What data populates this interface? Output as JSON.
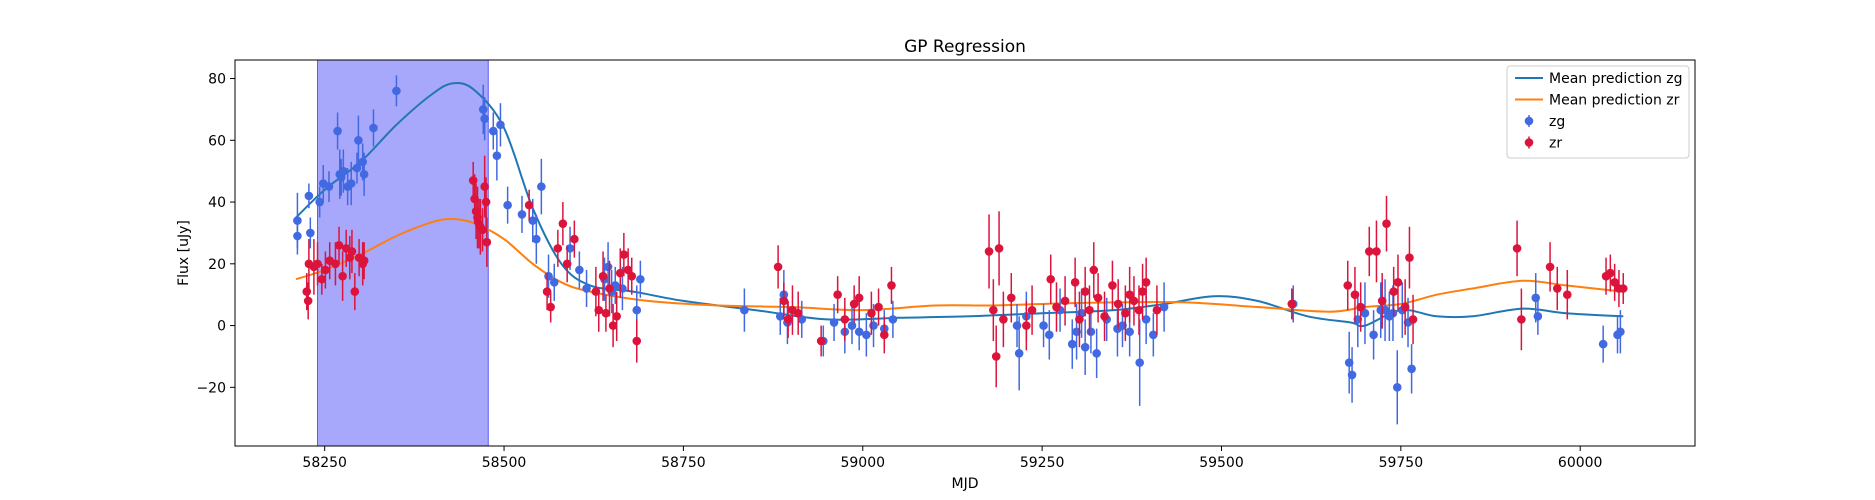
{
  "chart_data": {
    "type": "scatter",
    "title": "GP Regression",
    "xlabel": "MJD",
    "ylabel": "Flux [uJy]",
    "xlim": [
      58125,
      60160
    ],
    "ylim": [
      -39,
      86
    ],
    "xticks": [
      58250,
      58500,
      58750,
      59000,
      59250,
      59500,
      59750,
      60000
    ],
    "yticks": [
      -20,
      0,
      20,
      40,
      60,
      80
    ],
    "grid": false,
    "legend_position": "top-right",
    "highlight_span": {
      "x0": 58240,
      "x1": 58478,
      "color": "#a7a7fb"
    },
    "series": [
      {
        "name": "Mean prediction zg",
        "kind": "line",
        "color": "#1f77b4",
        "x": [
          58210,
          58250,
          58300,
          58350,
          58400,
          58430,
          58460,
          58500,
          58540,
          58580,
          58620,
          58680,
          58750,
          58850,
          58950,
          59050,
          59150,
          59250,
          59350,
          59420,
          59490,
          59550,
          59620,
          59680,
          59700,
          59750,
          59800,
          59850,
          59920,
          59980,
          60060
        ],
        "y": [
          35,
          44,
          53,
          65,
          75,
          78.5,
          76,
          64,
          38,
          20,
          13,
          11,
          8,
          5,
          2,
          2.5,
          3,
          4,
          5,
          7,
          9.5,
          8,
          3,
          1,
          0,
          5,
          3,
          3,
          5.5,
          4,
          3
        ]
      },
      {
        "name": "Mean prediction zr",
        "kind": "line",
        "color": "#ff7f0e",
        "x": [
          58210,
          58250,
          58300,
          58350,
          58400,
          58430,
          58460,
          58500,
          58540,
          58580,
          58620,
          58700,
          58800,
          58900,
          59000,
          59100,
          59180,
          59250,
          59350,
          59450,
          59550,
          59650,
          59700,
          59750,
          59800,
          59850,
          59920,
          59980,
          60060
        ],
        "y": [
          15,
          18,
          23,
          29,
          33.5,
          34.5,
          33,
          28,
          20,
          14,
          11,
          8,
          6.5,
          6,
          5,
          6.5,
          6.5,
          7,
          7.5,
          7.5,
          6,
          4.5,
          6,
          7,
          10,
          12,
          14.5,
          13,
          11
        ]
      },
      {
        "name": "zg",
        "kind": "errorbar",
        "color": "#4169e1",
        "x": [
          58212,
          58212,
          58228,
          58230,
          58243,
          58248,
          58256,
          58268,
          58271,
          58273,
          58276,
          58282,
          58287,
          58295,
          58297,
          58303,
          58305,
          58318,
          58350,
          58471,
          58473,
          58485,
          58490,
          58495,
          58505,
          58525,
          58540,
          58545,
          58552,
          58562,
          58570,
          58592,
          58605,
          58615,
          58640,
          58645,
          58650,
          58655,
          58665,
          58685,
          58690,
          58835,
          58885,
          58890,
          58895,
          58915,
          58945,
          58960,
          58975,
          58985,
          58995,
          59005,
          59015,
          59030,
          59042,
          59215,
          59218,
          59228,
          59252,
          59260,
          59275,
          59292,
          59298,
          59305,
          59310,
          59318,
          59326,
          59340,
          59355,
          59362,
          59372,
          59386,
          59395,
          59405,
          59420,
          59600,
          59678,
          59682,
          59690,
          59700,
          59712,
          59722,
          59728,
          59734,
          59739,
          59745,
          59752,
          59760,
          59765,
          59938,
          59941,
          60032,
          60052,
          60056
        ],
        "y": [
          34,
          29,
          42,
          30,
          40,
          46,
          45,
          63,
          49,
          48,
          50,
          45,
          46,
          51,
          60,
          53,
          49,
          64,
          76,
          70,
          67,
          63,
          55,
          65,
          39,
          36,
          34,
          28,
          45,
          16,
          14,
          25,
          18,
          12,
          15,
          19,
          11,
          13,
          12,
          5,
          15,
          5,
          3,
          10,
          1,
          2,
          -5,
          1,
          -2,
          0,
          -2,
          -3,
          0,
          -1,
          2,
          0,
          -9,
          3,
          0,
          -3,
          5,
          -6,
          -2,
          4,
          -7,
          -2,
          -9,
          2,
          -1,
          0,
          -2,
          -12,
          2,
          -3,
          6,
          7,
          -12,
          -16,
          2,
          4,
          -3,
          5,
          5,
          3,
          4,
          -20,
          5,
          1,
          -14,
          9,
          3,
          -6,
          -3,
          -2
        ],
        "err": [
          9,
          6,
          4,
          5,
          5,
          6,
          5,
          6,
          8,
          6,
          7,
          6,
          7,
          5,
          8,
          6,
          7,
          6,
          5,
          8,
          7,
          6,
          8,
          7,
          6,
          6,
          7,
          8,
          9,
          7,
          6,
          7,
          6,
          6,
          7,
          8,
          7,
          6,
          7,
          8,
          6,
          7,
          6,
          8,
          7,
          6,
          5,
          6,
          7,
          6,
          6,
          7,
          7,
          6,
          6,
          7,
          12,
          8,
          7,
          8,
          7,
          8,
          9,
          8,
          9,
          7,
          8,
          7,
          9,
          7,
          8,
          14,
          8,
          7,
          8,
          6,
          10,
          9,
          9,
          10,
          8,
          9,
          10,
          8,
          9,
          12,
          9,
          8,
          8,
          8,
          6,
          6,
          6,
          7
        ]
      },
      {
        "name": "zr",
        "kind": "errorbar",
        "color": "#dc143c",
        "x": [
          58225,
          58227,
          58228,
          58235,
          58240,
          58246,
          58251,
          58257,
          58265,
          58270,
          58275,
          58280,
          58285,
          58288,
          58292,
          58298,
          58303,
          58305,
          58457,
          58459,
          58461,
          58463,
          58465,
          58467,
          58470,
          58473,
          58475,
          58476,
          58535,
          58560,
          58565,
          58575,
          58582,
          58588,
          58598,
          58628,
          58632,
          58638,
          58642,
          58647,
          58652,
          58657,
          58662,
          58667,
          58673,
          58678,
          58685,
          58882,
          58890,
          58896,
          58902,
          58910,
          58942,
          58965,
          58975,
          58988,
          58995,
          59012,
          59022,
          59030,
          59040,
          59176,
          59182,
          59186,
          59190,
          59196,
          59207,
          59228,
          59236,
          59262,
          59270,
          59282,
          59296,
          59302,
          59310,
          59316,
          59322,
          59328,
          59337,
          59348,
          59356,
          59366,
          59372,
          59378,
          59385,
          59390,
          59395,
          59410,
          59598,
          59676,
          59686,
          59694,
          59706,
          59716,
          59724,
          59730,
          59740,
          59746,
          59756,
          59762,
          59767,
          59912,
          59918,
          59958,
          59968,
          59982,
          60036,
          60042,
          60048,
          60054,
          60060
        ],
        "y": [
          11,
          8,
          20,
          19,
          20,
          15,
          18,
          21,
          20,
          26,
          16,
          25,
          22,
          24,
          11,
          22,
          20,
          21,
          47,
          41,
          37,
          35,
          33,
          32,
          31,
          45,
          40,
          27,
          39,
          11,
          6,
          25,
          33,
          20,
          28,
          11,
          5,
          16,
          4,
          12,
          0,
          3,
          17,
          23,
          18,
          16,
          -5,
          19,
          8,
          2,
          5,
          4,
          -5,
          10,
          2,
          7,
          9,
          4,
          6,
          -3,
          13,
          24,
          5,
          -10,
          25,
          2,
          9,
          0,
          5,
          15,
          6,
          8,
          14,
          2,
          11,
          5,
          18,
          9,
          3,
          13,
          7,
          4,
          10,
          8,
          5,
          11,
          14,
          5,
          7,
          13,
          10,
          6,
          24,
          24,
          8,
          33,
          11,
          14,
          6,
          22,
          2,
          25,
          2,
          19,
          12,
          10,
          16,
          17,
          14,
          12,
          12
        ],
        "err": [
          6,
          6,
          8,
          9,
          7,
          5,
          6,
          6,
          7,
          6,
          8,
          6,
          7,
          7,
          6,
          6,
          7,
          6,
          6,
          8,
          9,
          10,
          8,
          9,
          7,
          10,
          8,
          8,
          5,
          6,
          5,
          6,
          7,
          6,
          6,
          8,
          7,
          8,
          6,
          9,
          7,
          8,
          8,
          7,
          7,
          6,
          7,
          7,
          6,
          6,
          8,
          7,
          5,
          6,
          7,
          6,
          7,
          7,
          6,
          6,
          6,
          12,
          10,
          10,
          12,
          9,
          8,
          8,
          8,
          8,
          8,
          8,
          8,
          9,
          8,
          8,
          9,
          8,
          8,
          8,
          8,
          9,
          9,
          8,
          8,
          9,
          8,
          8,
          5,
          8,
          9,
          8,
          8,
          10,
          9,
          9,
          8,
          9,
          9,
          10,
          8,
          9,
          10,
          8,
          7,
          8,
          6,
          6,
          6,
          6,
          5
        ]
      }
    ]
  }
}
